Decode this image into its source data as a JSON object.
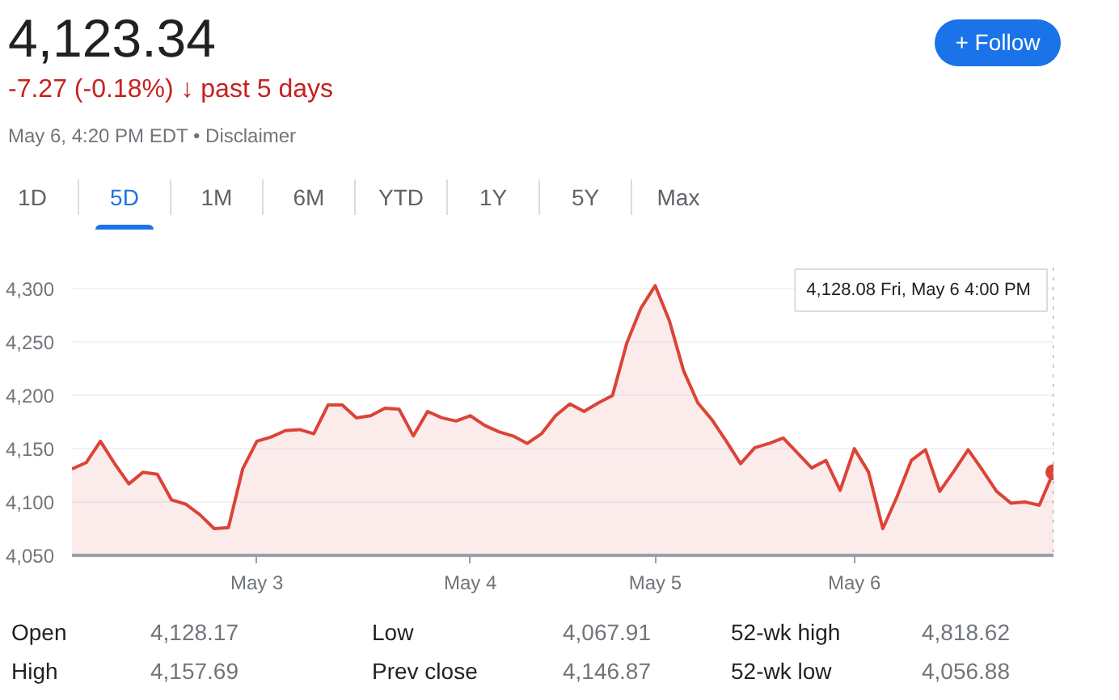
{
  "chart_data": {
    "type": "area",
    "title": "4,123.34",
    "subtitle": "-7.27 (-0.18%) ↓ past 5 days",
    "annotations": [
      "May 6, 4:20 PM EDT • Disclaimer",
      "+ Follow",
      "1D",
      "5D",
      "1M",
      "6M",
      "YTD",
      "1Y",
      "5Y",
      "Max",
      "Open",
      "4,128.17",
      "Low",
      "4,067.91",
      "52-wk high",
      "4,818.62",
      "High",
      "4,157.69",
      "Prev close",
      "4,146.87",
      "52-wk low",
      "4,056.88",
      "4,128.08  Fri, May 6 4:00 PM"
    ],
    "categories": [
      null,
      null,
      null,
      null,
      null,
      null,
      null,
      null,
      null,
      null,
      null,
      null,
      null,
      "May 3",
      null,
      null,
      null,
      null,
      null,
      null,
      null,
      null,
      null,
      null,
      null,
      null,
      null,
      null,
      "May 4",
      null,
      null,
      null,
      null,
      null,
      null,
      null,
      null,
      null,
      null,
      null,
      null,
      "May 5",
      null,
      null,
      null,
      null,
      null,
      null,
      null,
      null,
      null,
      null,
      null,
      null,
      null,
      "May 6",
      null,
      null,
      null,
      null,
      null,
      null,
      null,
      null,
      null,
      null,
      null,
      null,
      null,
      null
    ],
    "series": [
      {
        "color": "#db4437",
        "values": [
          4131,
          4137,
          4157,
          4136,
          4117,
          4128,
          4126,
          4102,
          4098,
          4088,
          4075,
          4076,
          4131,
          4157,
          4161,
          4167,
          4168,
          4164,
          4191,
          4191,
          4179,
          4181,
          4188,
          4187,
          4162,
          4185,
          4179,
          4176,
          4181,
          4172,
          4166,
          4162,
          4155,
          4164,
          4181,
          4192,
          4185,
          4193,
          4200,
          4249,
          4282,
          4303,
          4270,
          4223,
          4193,
          4177,
          4157,
          4136,
          4151,
          4155,
          4160,
          4146,
          4132,
          4139,
          4111,
          4150,
          4128,
          4075,
          4105,
          4139,
          4149,
          4110,
          4129,
          4149,
          4130,
          4110,
          4099,
          4100,
          4097,
          4128
        ]
      }
    ],
    "ylim": [
      4050,
      4320
    ],
    "yticks": [
      {
        "value": 4050,
        "label": "4,050"
      },
      {
        "value": 4100,
        "label": "4,100"
      },
      {
        "value": 4150,
        "label": "4,150"
      },
      {
        "value": 4200,
        "label": "4,200"
      },
      {
        "value": 4250,
        "label": "4,250"
      },
      {
        "value": 4300,
        "label": "4,300"
      }
    ],
    "grid": "y"
  }
}
